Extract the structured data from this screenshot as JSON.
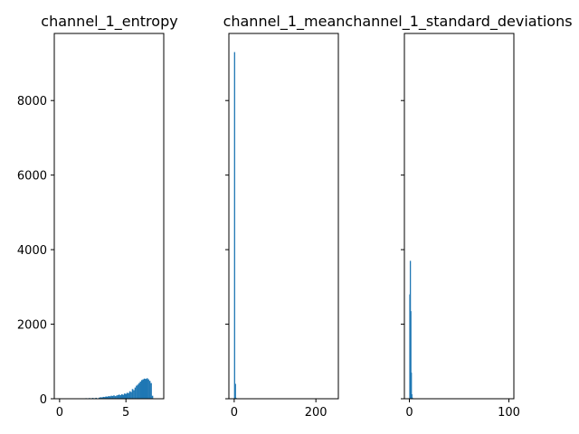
{
  "figure": {
    "bar_color": "#1f77b4",
    "y_ticks": [
      "0",
      "2000",
      "4000",
      "6000",
      "8000"
    ],
    "ylim": [
      0,
      9800
    ]
  },
  "chart_data": [
    {
      "type": "bar",
      "title": "channel_1_entropy",
      "x_ticks": [
        "0",
        "5"
      ],
      "xlim": [
        -0.4,
        7.85
      ],
      "ylim": [
        0,
        9800
      ],
      "x": [
        1.5,
        1.75,
        2.0,
        2.25,
        2.5,
        2.75,
        3.0,
        3.1,
        3.2,
        3.3,
        3.4,
        3.5,
        3.6,
        3.7,
        3.8,
        3.9,
        4.0,
        4.1,
        4.2,
        4.3,
        4.4,
        4.5,
        4.6,
        4.7,
        4.8,
        4.9,
        5.0,
        5.1,
        5.2,
        5.3,
        5.4,
        5.5,
        5.6,
        5.7,
        5.8,
        5.9,
        6.0,
        6.1,
        6.2,
        6.3,
        6.4,
        6.5,
        6.6,
        6.7,
        6.8,
        6.9,
        7.0
      ],
      "values": [
        8,
        12,
        15,
        18,
        22,
        25,
        30,
        40,
        35,
        50,
        45,
        60,
        55,
        70,
        65,
        80,
        75,
        90,
        70,
        85,
        100,
        110,
        95,
        120,
        105,
        140,
        130,
        160,
        150,
        200,
        180,
        260,
        230,
        300,
        350,
        380,
        420,
        460,
        500,
        520,
        540,
        530,
        550,
        520,
        480,
        420,
        80
      ]
    },
    {
      "type": "bar",
      "title": "channel_1_mean",
      "x_ticks": [
        "0",
        "200"
      ],
      "xlim": [
        -13,
        255
      ],
      "ylim": [
        0,
        9800
      ],
      "x": [
        1,
        3,
        5
      ],
      "values": [
        9300,
        400,
        20
      ]
    },
    {
      "type": "bar",
      "title": "channel_1_standard_deviations",
      "x_ticks": [
        "0",
        "100"
      ],
      "xlim": [
        -5,
        105
      ],
      "ylim": [
        0,
        9800
      ],
      "x": [
        0.5,
        1.0,
        1.5,
        2.0,
        2.5,
        3.0
      ],
      "values": [
        2800,
        3700,
        2350,
        700,
        120,
        30
      ]
    }
  ]
}
